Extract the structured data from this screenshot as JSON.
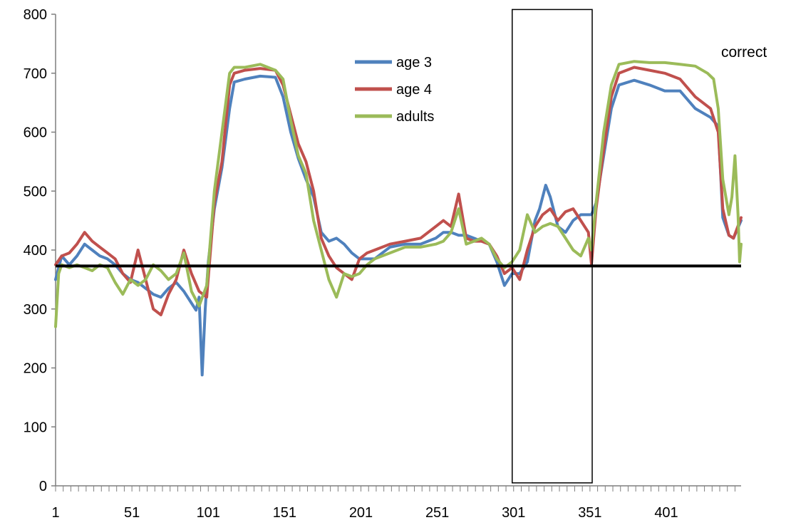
{
  "chart_data": {
    "type": "line",
    "title": "",
    "xlabel": "",
    "ylabel": "",
    "xlim": [
      1,
      450
    ],
    "ylim": [
      0,
      800
    ],
    "y_ticks": [
      0,
      100,
      200,
      300,
      400,
      500,
      600,
      700,
      800
    ],
    "x_ticks": [
      1,
      51,
      101,
      151,
      201,
      251,
      301,
      351,
      401
    ],
    "grid": false,
    "legend_position": "top-center",
    "annotations": [
      {
        "text": "correct",
        "position": "top-right"
      }
    ],
    "reference_line": {
      "y": 373,
      "color": "#000000"
    },
    "highlight_box": {
      "x_start": 301,
      "x_end": 352,
      "y_start": 5,
      "y_end": 808
    },
    "series": [
      {
        "name": "age 3",
        "color": "#4F81BD",
        "points": [
          [
            1,
            350
          ],
          [
            5,
            390
          ],
          [
            10,
            375
          ],
          [
            15,
            390
          ],
          [
            20,
            410
          ],
          [
            25,
            400
          ],
          [
            30,
            390
          ],
          [
            35,
            385
          ],
          [
            40,
            375
          ],
          [
            45,
            360
          ],
          [
            50,
            350
          ],
          [
            55,
            345
          ],
          [
            60,
            335
          ],
          [
            65,
            325
          ],
          [
            70,
            320
          ],
          [
            75,
            335
          ],
          [
            80,
            345
          ],
          [
            85,
            330
          ],
          [
            90,
            310
          ],
          [
            93,
            298
          ],
          [
            95,
            320
          ],
          [
            97,
            188
          ],
          [
            99,
            300
          ],
          [
            101,
            380
          ],
          [
            105,
            470
          ],
          [
            110,
            540
          ],
          [
            115,
            640
          ],
          [
            118,
            685
          ],
          [
            125,
            690
          ],
          [
            135,
            695
          ],
          [
            145,
            693
          ],
          [
            150,
            660
          ],
          [
            155,
            600
          ],
          [
            160,
            555
          ],
          [
            165,
            520
          ],
          [
            170,
            490
          ],
          [
            175,
            430
          ],
          [
            180,
            415
          ],
          [
            185,
            420
          ],
          [
            190,
            410
          ],
          [
            195,
            395
          ],
          [
            200,
            385
          ],
          [
            205,
            385
          ],
          [
            210,
            385
          ],
          [
            215,
            395
          ],
          [
            220,
            405
          ],
          [
            230,
            410
          ],
          [
            240,
            410
          ],
          [
            250,
            420
          ],
          [
            255,
            430
          ],
          [
            260,
            430
          ],
          [
            265,
            425
          ],
          [
            270,
            425
          ],
          [
            275,
            420
          ],
          [
            280,
            415
          ],
          [
            285,
            410
          ],
          [
            290,
            380
          ],
          [
            295,
            340
          ],
          [
            300,
            360
          ],
          [
            305,
            360
          ],
          [
            310,
            380
          ],
          [
            315,
            450
          ],
          [
            318,
            470
          ],
          [
            322,
            510
          ],
          [
            325,
            490
          ],
          [
            330,
            440
          ],
          [
            335,
            430
          ],
          [
            340,
            450
          ],
          [
            345,
            460
          ],
          [
            352,
            460
          ],
          [
            355,
            480
          ],
          [
            360,
            560
          ],
          [
            365,
            640
          ],
          [
            370,
            680
          ],
          [
            380,
            688
          ],
          [
            390,
            680
          ],
          [
            400,
            670
          ],
          [
            410,
            670
          ],
          [
            420,
            640
          ],
          [
            430,
            625
          ],
          [
            435,
            610
          ],
          [
            438,
            455
          ],
          [
            442,
            425
          ],
          [
            445,
            420
          ],
          [
            450,
            450
          ]
        ]
      },
      {
        "name": "age 4",
        "color": "#C0504D",
        "points": [
          [
            1,
            375
          ],
          [
            5,
            390
          ],
          [
            10,
            395
          ],
          [
            15,
            410
          ],
          [
            20,
            430
          ],
          [
            25,
            415
          ],
          [
            30,
            405
          ],
          [
            35,
            395
          ],
          [
            40,
            385
          ],
          [
            45,
            360
          ],
          [
            50,
            345
          ],
          [
            55,
            400
          ],
          [
            60,
            350
          ],
          [
            65,
            300
          ],
          [
            70,
            290
          ],
          [
            75,
            325
          ],
          [
            80,
            350
          ],
          [
            85,
            400
          ],
          [
            90,
            360
          ],
          [
            95,
            330
          ],
          [
            100,
            320
          ],
          [
            105,
            480
          ],
          [
            110,
            550
          ],
          [
            115,
            680
          ],
          [
            118,
            700
          ],
          [
            125,
            705
          ],
          [
            135,
            708
          ],
          [
            145,
            705
          ],
          [
            150,
            680
          ],
          [
            155,
            630
          ],
          [
            160,
            580
          ],
          [
            165,
            550
          ],
          [
            170,
            500
          ],
          [
            175,
            420
          ],
          [
            180,
            390
          ],
          [
            185,
            370
          ],
          [
            190,
            360
          ],
          [
            195,
            350
          ],
          [
            200,
            385
          ],
          [
            205,
            395
          ],
          [
            210,
            400
          ],
          [
            215,
            405
          ],
          [
            220,
            410
          ],
          [
            230,
            415
          ],
          [
            240,
            420
          ],
          [
            250,
            440
          ],
          [
            255,
            450
          ],
          [
            260,
            440
          ],
          [
            265,
            495
          ],
          [
            270,
            420
          ],
          [
            275,
            415
          ],
          [
            280,
            415
          ],
          [
            285,
            410
          ],
          [
            290,
            390
          ],
          [
            295,
            360
          ],
          [
            300,
            370
          ],
          [
            305,
            350
          ],
          [
            310,
            400
          ],
          [
            315,
            440
          ],
          [
            320,
            460
          ],
          [
            325,
            470
          ],
          [
            330,
            450
          ],
          [
            335,
            465
          ],
          [
            340,
            470
          ],
          [
            345,
            450
          ],
          [
            350,
            430
          ],
          [
            352,
            376
          ],
          [
            355,
            470
          ],
          [
            360,
            570
          ],
          [
            365,
            660
          ],
          [
            370,
            700
          ],
          [
            380,
            710
          ],
          [
            390,
            705
          ],
          [
            400,
            700
          ],
          [
            410,
            690
          ],
          [
            420,
            660
          ],
          [
            430,
            640
          ],
          [
            435,
            600
          ],
          [
            438,
            470
          ],
          [
            442,
            425
          ],
          [
            445,
            420
          ],
          [
            450,
            455
          ]
        ]
      },
      {
        "name": "adults",
        "color": "#9BBB59",
        "points": [
          [
            1,
            270
          ],
          [
            3,
            360
          ],
          [
            5,
            375
          ],
          [
            10,
            370
          ],
          [
            15,
            375
          ],
          [
            20,
            370
          ],
          [
            25,
            365
          ],
          [
            30,
            375
          ],
          [
            35,
            370
          ],
          [
            40,
            345
          ],
          [
            45,
            325
          ],
          [
            50,
            350
          ],
          [
            55,
            340
          ],
          [
            60,
            350
          ],
          [
            65,
            375
          ],
          [
            70,
            365
          ],
          [
            75,
            350
          ],
          [
            80,
            360
          ],
          [
            85,
            395
          ],
          [
            90,
            330
          ],
          [
            95,
            305
          ],
          [
            100,
            340
          ],
          [
            105,
            500
          ],
          [
            110,
            600
          ],
          [
            115,
            700
          ],
          [
            118,
            710
          ],
          [
            125,
            710
          ],
          [
            135,
            715
          ],
          [
            145,
            705
          ],
          [
            150,
            690
          ],
          [
            155,
            620
          ],
          [
            160,
            560
          ],
          [
            165,
            530
          ],
          [
            170,
            450
          ],
          [
            175,
            400
          ],
          [
            180,
            350
          ],
          [
            185,
            320
          ],
          [
            190,
            360
          ],
          [
            195,
            355
          ],
          [
            200,
            360
          ],
          [
            205,
            375
          ],
          [
            210,
            385
          ],
          [
            215,
            390
          ],
          [
            220,
            395
          ],
          [
            230,
            405
          ],
          [
            240,
            405
          ],
          [
            250,
            410
          ],
          [
            255,
            415
          ],
          [
            260,
            430
          ],
          [
            265,
            470
          ],
          [
            270,
            410
          ],
          [
            275,
            415
          ],
          [
            280,
            420
          ],
          [
            285,
            410
          ],
          [
            290,
            385
          ],
          [
            295,
            370
          ],
          [
            300,
            380
          ],
          [
            305,
            400
          ],
          [
            310,
            460
          ],
          [
            315,
            430
          ],
          [
            320,
            440
          ],
          [
            325,
            445
          ],
          [
            330,
            440
          ],
          [
            335,
            420
          ],
          [
            340,
            400
          ],
          [
            345,
            390
          ],
          [
            350,
            420
          ],
          [
            352,
            400
          ],
          [
            355,
            480
          ],
          [
            360,
            600
          ],
          [
            365,
            680
          ],
          [
            370,
            715
          ],
          [
            380,
            720
          ],
          [
            390,
            718
          ],
          [
            400,
            718
          ],
          [
            410,
            715
          ],
          [
            420,
            712
          ],
          [
            428,
            700
          ],
          [
            432,
            690
          ],
          [
            435,
            640
          ],
          [
            438,
            520
          ],
          [
            442,
            460
          ],
          [
            444,
            490
          ],
          [
            446,
            560
          ],
          [
            448,
            460
          ],
          [
            449,
            380
          ],
          [
            450,
            410
          ]
        ]
      }
    ]
  }
}
